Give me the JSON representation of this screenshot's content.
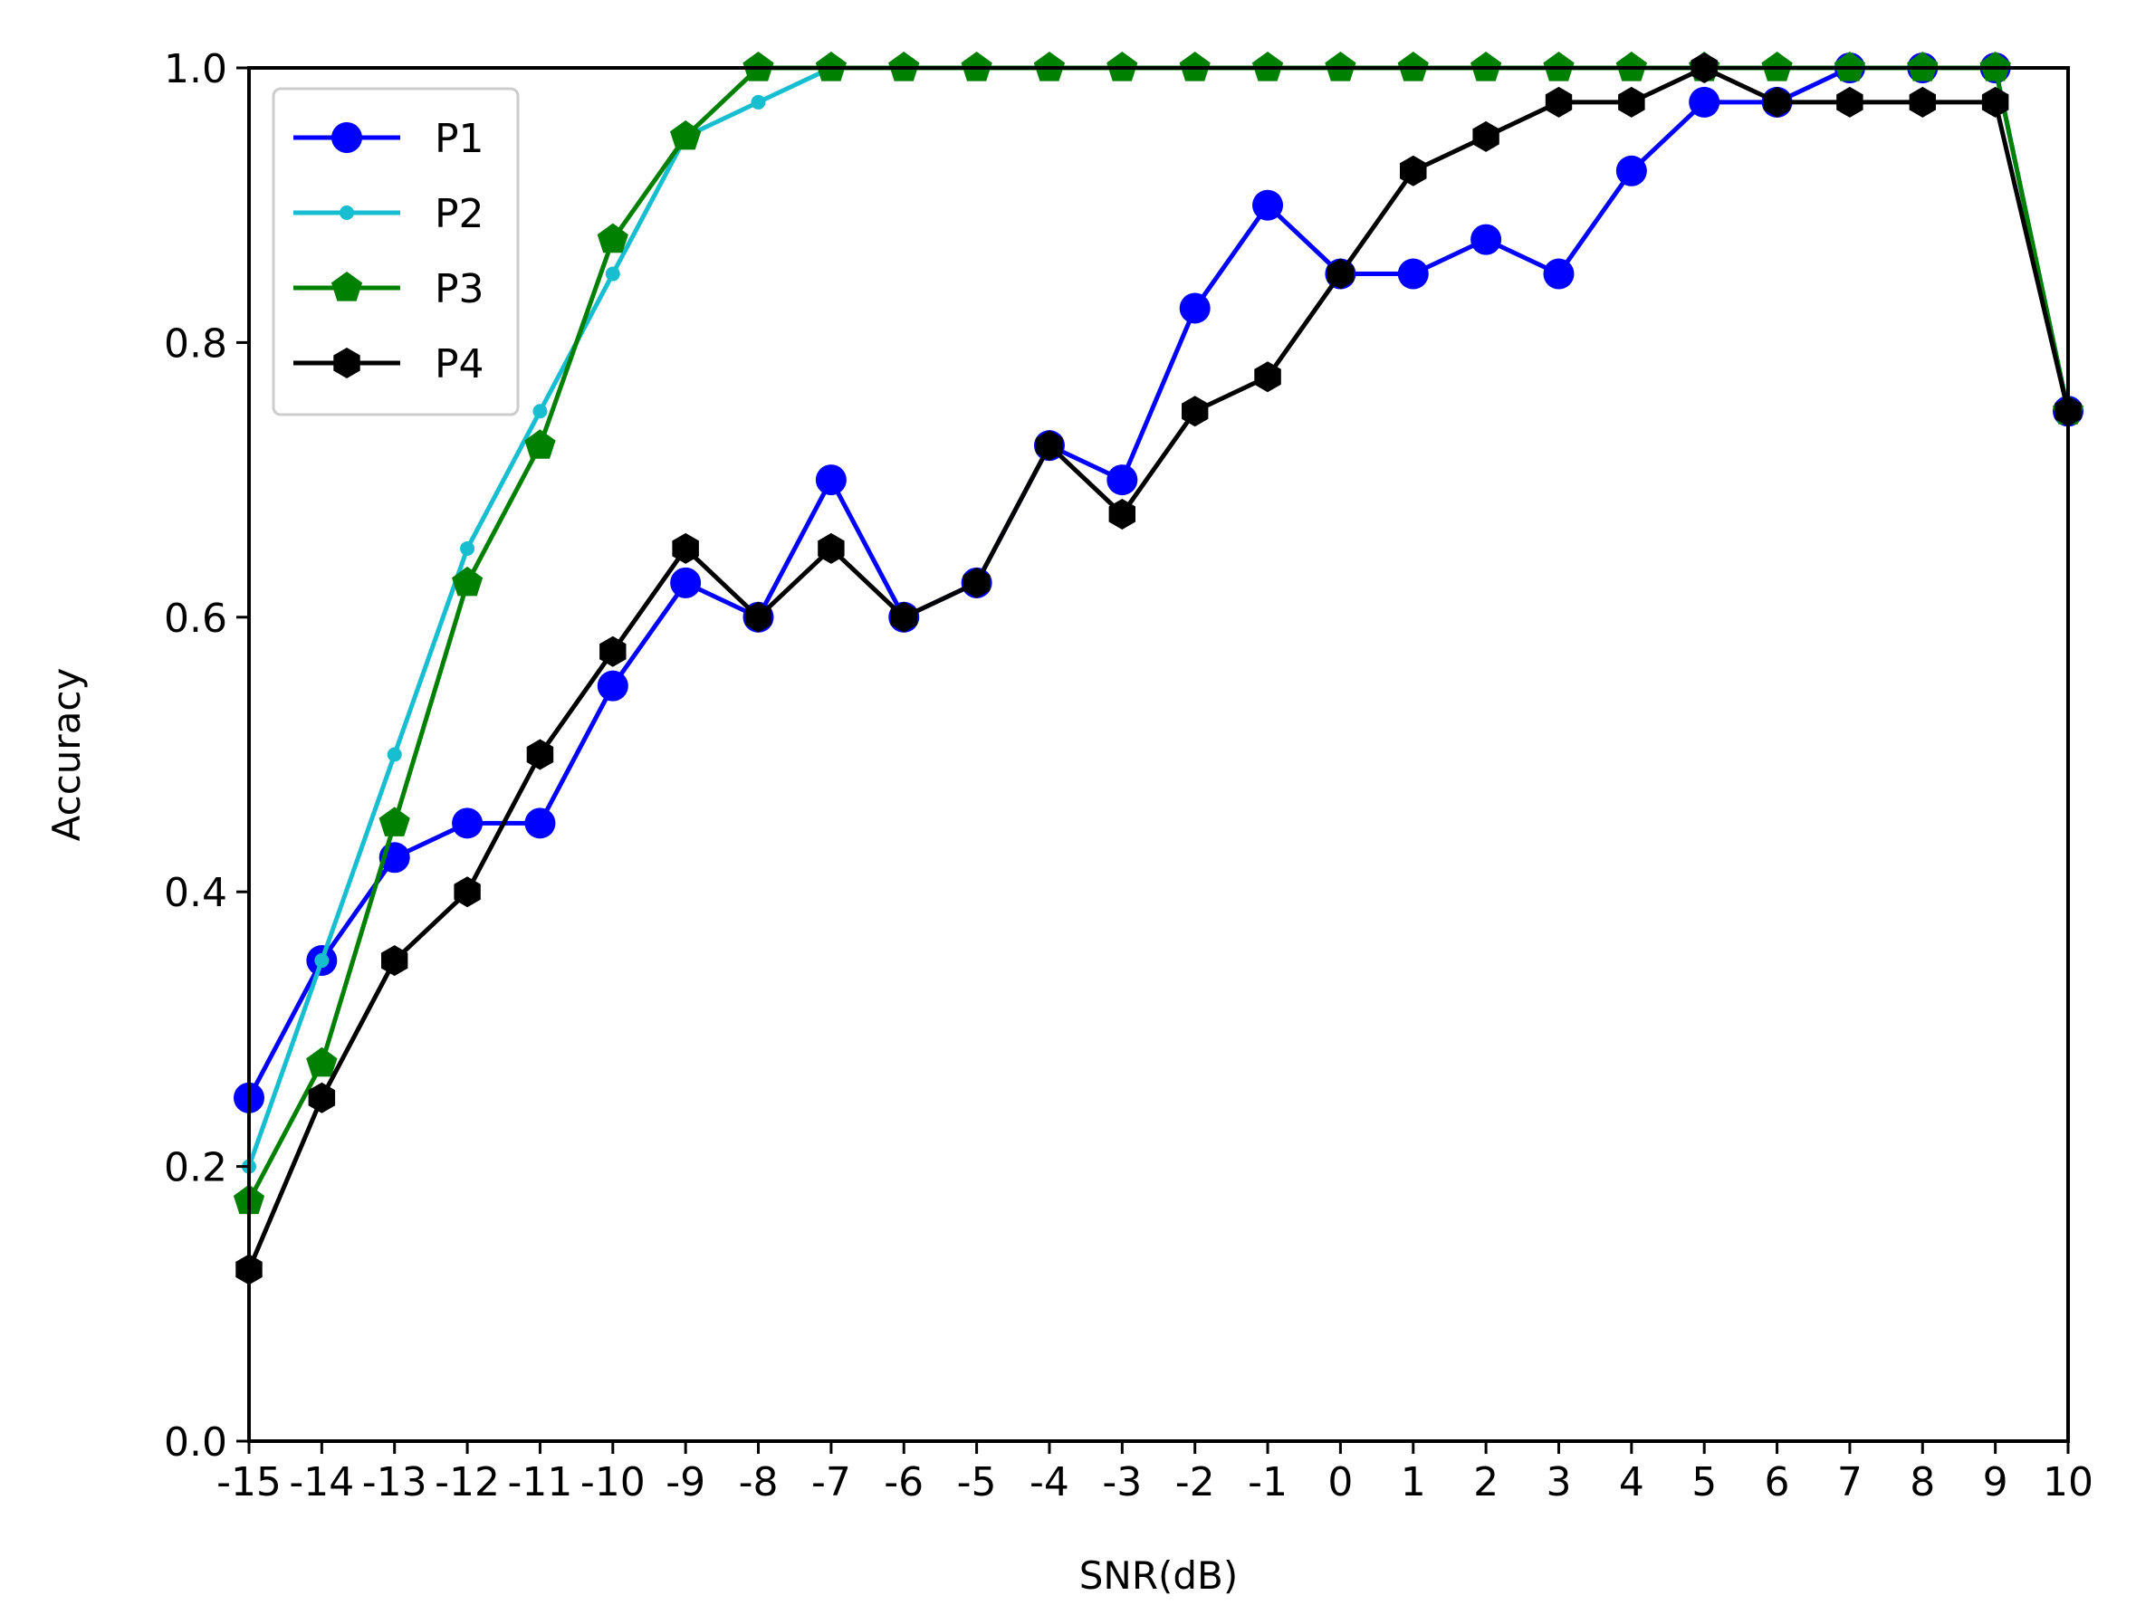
{
  "chart_data": {
    "type": "line",
    "title": "",
    "xlabel": "SNR(dB)",
    "ylabel": "Accuracy",
    "x": [
      -15,
      -14,
      -13,
      -12,
      -11,
      -10,
      -9,
      -8,
      -7,
      -6,
      -5,
      -4,
      -3,
      -2,
      -1,
      0,
      1,
      2,
      3,
      4,
      5,
      6,
      7,
      8,
      9,
      10
    ],
    "xlim": [
      -15,
      10
    ],
    "ylim": [
      0.0,
      1.0
    ],
    "yticks": [
      "0.0",
      "0.2",
      "0.4",
      "0.6",
      "0.8",
      "1.0"
    ],
    "grid": false,
    "legend_position": "top-left",
    "series": [
      {
        "name": "P1",
        "color": "#0000ff",
        "marker": "circle",
        "values": [
          0.25,
          0.35,
          0.425,
          0.45,
          0.45,
          0.55,
          0.625,
          0.6,
          0.7,
          0.6,
          0.625,
          0.725,
          0.7,
          0.825,
          0.9,
          0.85,
          0.85,
          0.875,
          0.85,
          0.925,
          0.975,
          0.975,
          1.0,
          1.0,
          1.0,
          0.75
        ]
      },
      {
        "name": "P2",
        "color": "#17becf",
        "marker": "small-dot",
        "values": [
          0.2,
          0.35,
          0.5,
          0.65,
          0.75,
          0.85,
          0.95,
          0.975,
          1.0,
          1.0,
          1.0,
          1.0,
          1.0,
          1.0,
          1.0,
          1.0,
          1.0,
          1.0,
          1.0,
          1.0,
          1.0,
          1.0,
          1.0,
          1.0,
          1.0,
          0.75
        ]
      },
      {
        "name": "P3",
        "color": "#008000",
        "marker": "pentagon",
        "values": [
          0.175,
          0.275,
          0.45,
          0.625,
          0.725,
          0.875,
          0.95,
          1.0,
          1.0,
          1.0,
          1.0,
          1.0,
          1.0,
          1.0,
          1.0,
          1.0,
          1.0,
          1.0,
          1.0,
          1.0,
          1.0,
          1.0,
          1.0,
          1.0,
          1.0,
          0.75
        ]
      },
      {
        "name": "P4",
        "color": "#000000",
        "marker": "hexagon",
        "values": [
          0.125,
          0.25,
          0.35,
          0.4,
          0.5,
          0.575,
          0.65,
          0.6,
          0.65,
          0.6,
          0.625,
          0.725,
          0.675,
          0.75,
          0.775,
          0.85,
          0.925,
          0.95,
          0.975,
          0.975,
          1.0,
          0.975,
          0.975,
          0.975,
          0.975,
          0.75
        ]
      }
    ]
  }
}
